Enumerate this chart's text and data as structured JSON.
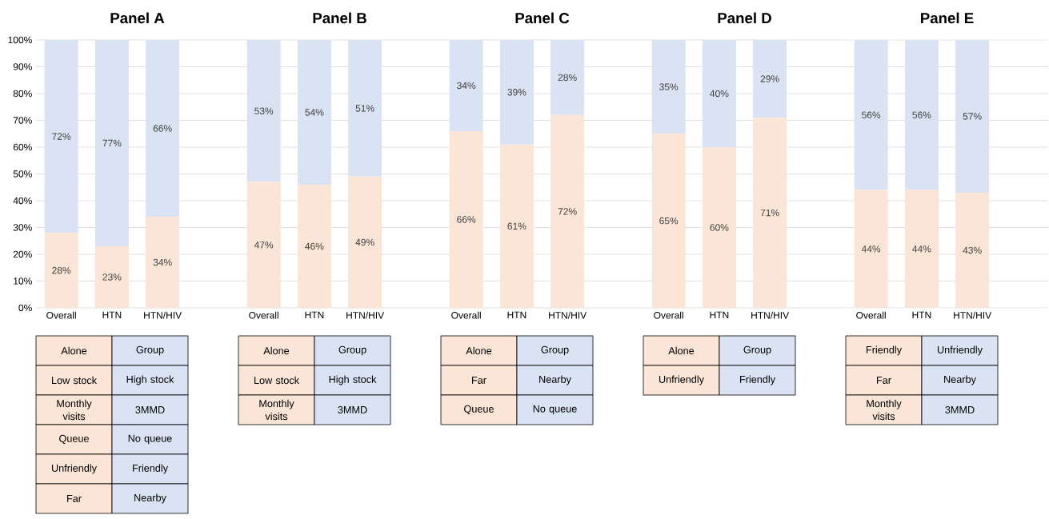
{
  "chart_data": [
    {
      "type": "bar",
      "stacked": true,
      "title": "Panel A",
      "categories": [
        "Overall",
        "HTN",
        "HTN/HIV"
      ],
      "grid": "y",
      "ylim": [
        0,
        100
      ],
      "yticks": [
        {
          "value": 0,
          "label": "0%"
        },
        {
          "value": 10,
          "label": "10%"
        },
        {
          "value": 20,
          "label": "20%"
        },
        {
          "value": 30,
          "label": "30%"
        },
        {
          "value": 40,
          "label": "40%"
        },
        {
          "value": 50,
          "label": "50%"
        },
        {
          "value": 60,
          "label": "60%"
        },
        {
          "value": 70,
          "label": "70%"
        },
        {
          "value": 80,
          "label": "80%"
        },
        {
          "value": 90,
          "label": "90%"
        },
        {
          "value": 100,
          "label": "100%"
        }
      ],
      "series": [
        {
          "color": "#fbe5d6",
          "values": [
            28,
            23,
            34
          ],
          "value_labels": [
            "28%",
            "23%",
            "34%"
          ]
        },
        {
          "color": "#dae3f3",
          "values": [
            72,
            77,
            66
          ],
          "value_labels": [
            "72%",
            "77%",
            "66%"
          ]
        }
      ],
      "annotations": [
        "Alone",
        "Group",
        "Low stock",
        "High stock",
        "Monthly visits",
        "3MMD",
        "Queue",
        "No queue",
        "Unfriendly",
        "Friendly",
        "Far",
        "Nearby"
      ]
    },
    {
      "type": "bar",
      "stacked": true,
      "title": "Panel B",
      "categories": [
        "Overall",
        "HTN",
        "HTN/HIV"
      ],
      "grid": "y",
      "ylim": [
        0,
        100
      ],
      "tick_labels": "x",
      "yticks": [
        {
          "value": 0,
          "label": null
        },
        {
          "value": 10,
          "label": null
        },
        {
          "value": 20,
          "label": null
        },
        {
          "value": 30,
          "label": null
        },
        {
          "value": 40,
          "label": null
        },
        {
          "value": 50,
          "label": null
        },
        {
          "value": 60,
          "label": null
        },
        {
          "value": 70,
          "label": null
        },
        {
          "value": 80,
          "label": null
        },
        {
          "value": 90,
          "label": null
        },
        {
          "value": 100,
          "label": null
        }
      ],
      "series": [
        {
          "color": "#fbe5d6",
          "values": [
            47,
            46,
            49
          ],
          "value_labels": [
            "47%",
            "46%",
            "49%"
          ]
        },
        {
          "color": "#dae3f3",
          "values": [
            53,
            54,
            51
          ],
          "value_labels": [
            "53%",
            "54%",
            "51%"
          ]
        }
      ],
      "annotations": [
        "Alone",
        "Group",
        "Low stock",
        "High stock",
        "Monthly visits",
        "3MMD"
      ]
    },
    {
      "type": "bar",
      "stacked": true,
      "title": "Panel C",
      "categories": [
        "Overall",
        "HTN",
        "HTN/HIV"
      ],
      "grid": "y",
      "ylim": [
        0,
        100
      ],
      "tick_labels": "x",
      "yticks": [
        {
          "value": 0,
          "label": null
        },
        {
          "value": 10,
          "label": null
        },
        {
          "value": 20,
          "label": null
        },
        {
          "value": 30,
          "label": null
        },
        {
          "value": 40,
          "label": null
        },
        {
          "value": 50,
          "label": null
        },
        {
          "value": 60,
          "label": null
        },
        {
          "value": 70,
          "label": null
        },
        {
          "value": 80,
          "label": null
        },
        {
          "value": 90,
          "label": null
        },
        {
          "value": 100,
          "label": null
        }
      ],
      "series": [
        {
          "color": "#fbe5d6",
          "values": [
            66,
            61,
            72
          ],
          "value_labels": [
            "66%",
            "61%",
            "72%"
          ]
        },
        {
          "color": "#dae3f3",
          "values": [
            34,
            39,
            28
          ],
          "value_labels": [
            "34%",
            "39%",
            "28%"
          ]
        }
      ],
      "annotations": [
        "Alone",
        "Group",
        "Far",
        "Nearby",
        "Queue",
        "No queue"
      ]
    },
    {
      "type": "bar",
      "stacked": true,
      "title": "Panel D",
      "categories": [
        "Overall",
        "HTN",
        "HTN/HIV"
      ],
      "grid": "y",
      "ylim": [
        0,
        100
      ],
      "tick_labels": "x",
      "yticks": [
        {
          "value": 0,
          "label": null
        },
        {
          "value": 10,
          "label": null
        },
        {
          "value": 20,
          "label": null
        },
        {
          "value": 30,
          "label": null
        },
        {
          "value": 40,
          "label": null
        },
        {
          "value": 50,
          "label": null
        },
        {
          "value": 60,
          "label": null
        },
        {
          "value": 70,
          "label": null
        },
        {
          "value": 80,
          "label": null
        },
        {
          "value": 90,
          "label": null
        },
        {
          "value": 100,
          "label": null
        }
      ],
      "series": [
        {
          "color": "#fbe5d6",
          "values": [
            65,
            60,
            71
          ],
          "value_labels": [
            "65%",
            "60%",
            "71%"
          ]
        },
        {
          "color": "#dae3f3",
          "values": [
            35,
            40,
            29
          ],
          "value_labels": [
            "35%",
            "40%",
            "29%"
          ]
        }
      ],
      "annotations": [
        "Alone",
        "Group",
        "Unfriendly",
        "Friendly"
      ]
    },
    {
      "type": "bar",
      "stacked": true,
      "title": "Panel E",
      "categories": [
        "Overall",
        "HTN",
        "HTN/HIV"
      ],
      "grid": "y",
      "ylim": [
        0,
        100
      ],
      "tick_labels": "x",
      "yticks": [
        {
          "value": 0,
          "label": null
        },
        {
          "value": 10,
          "label": null
        },
        {
          "value": 20,
          "label": null
        },
        {
          "value": 30,
          "label": null
        },
        {
          "value": 40,
          "label": null
        },
        {
          "value": 50,
          "label": null
        },
        {
          "value": 60,
          "label": null
        },
        {
          "value": 70,
          "label": null
        },
        {
          "value": 80,
          "label": null
        },
        {
          "value": 90,
          "label": null
        },
        {
          "value": 100,
          "label": null
        }
      ],
      "series": [
        {
          "color": "#fbe5d6",
          "values": [
            44,
            44,
            43
          ],
          "value_labels": [
            "44%",
            "44%",
            "43%"
          ]
        },
        {
          "color": "#dae3f3",
          "values": [
            56,
            56,
            57
          ],
          "value_labels": [
            "56%",
            "56%",
            "57%"
          ]
        }
      ],
      "annotations": [
        "Friendly",
        "Unfriendly",
        "Far",
        "Nearby",
        "Monthly visits",
        "3MMD"
      ]
    }
  ]
}
